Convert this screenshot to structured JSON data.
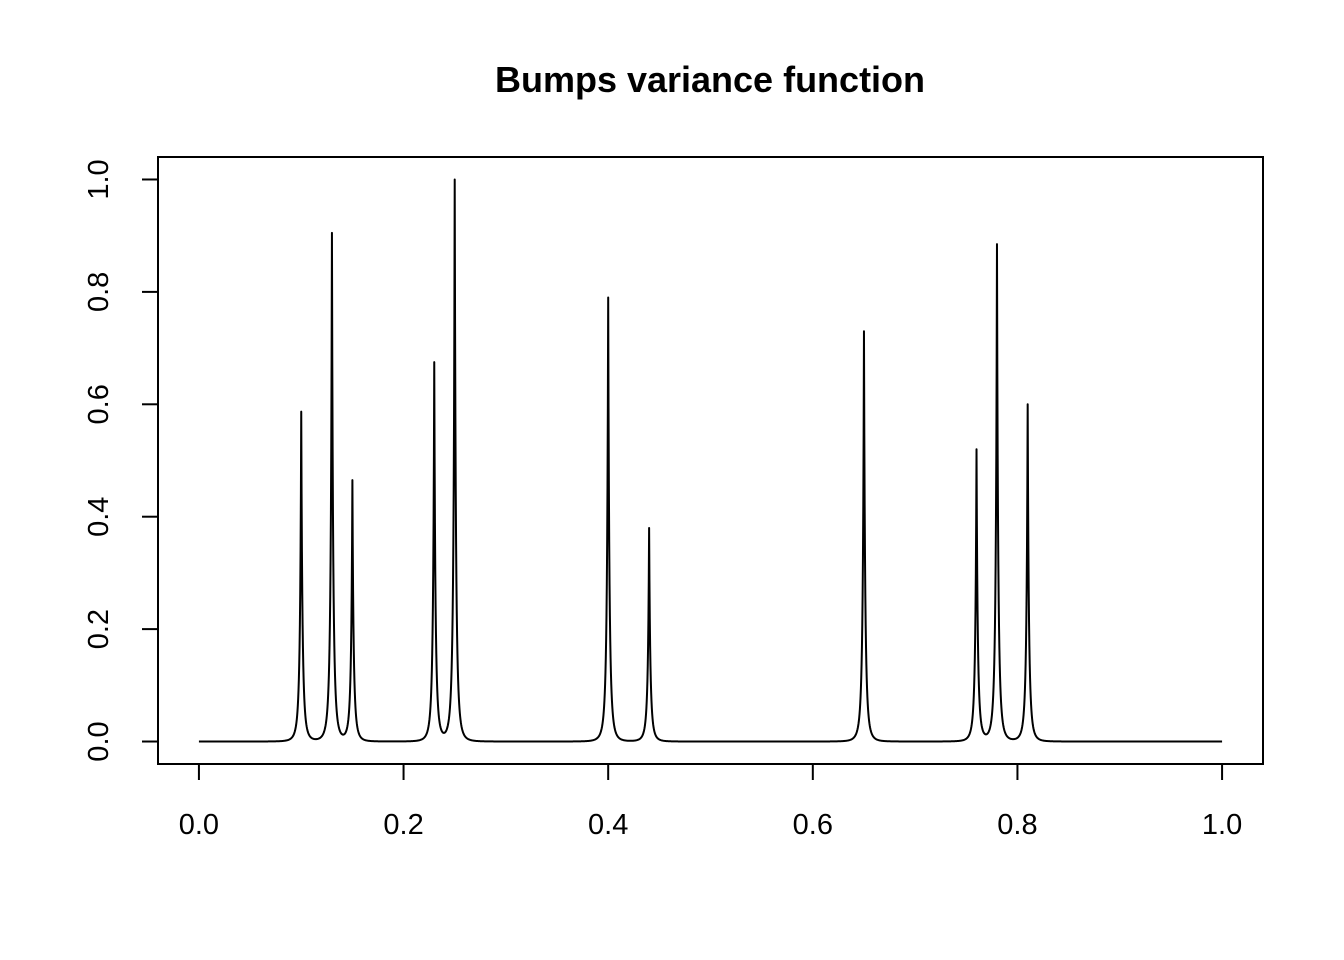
{
  "chart_data": {
    "type": "line",
    "title": "Bumps variance function",
    "xlabel": "",
    "ylabel": "",
    "xlim": [
      -0.04,
      1.04
    ],
    "ylim": [
      -0.04,
      1.04
    ],
    "x_ticks": [
      "0.0",
      "0.2",
      "0.4",
      "0.6",
      "0.8",
      "1.0"
    ],
    "y_ticks": [
      "0.0",
      "0.2",
      "0.4",
      "0.6",
      "0.8",
      "1.0"
    ],
    "grid": false,
    "line_color": "#000000",
    "series": [
      {
        "peaks": [
          {
            "x": 0.1,
            "y": 0.587
          },
          {
            "x": 0.13,
            "y": 0.905
          },
          {
            "x": 0.15,
            "y": 0.465
          },
          {
            "x": 0.23,
            "y": 0.675
          },
          {
            "x": 0.25,
            "y": 1.0
          },
          {
            "x": 0.4,
            "y": 0.79
          },
          {
            "x": 0.44,
            "y": 0.38
          },
          {
            "x": 0.65,
            "y": 0.73
          },
          {
            "x": 0.76,
            "y": 0.52
          },
          {
            "x": 0.78,
            "y": 0.885
          },
          {
            "x": 0.81,
            "y": 0.6
          }
        ],
        "x_range": [
          0.0,
          1.0
        ],
        "baseline": 0.0
      }
    ]
  }
}
